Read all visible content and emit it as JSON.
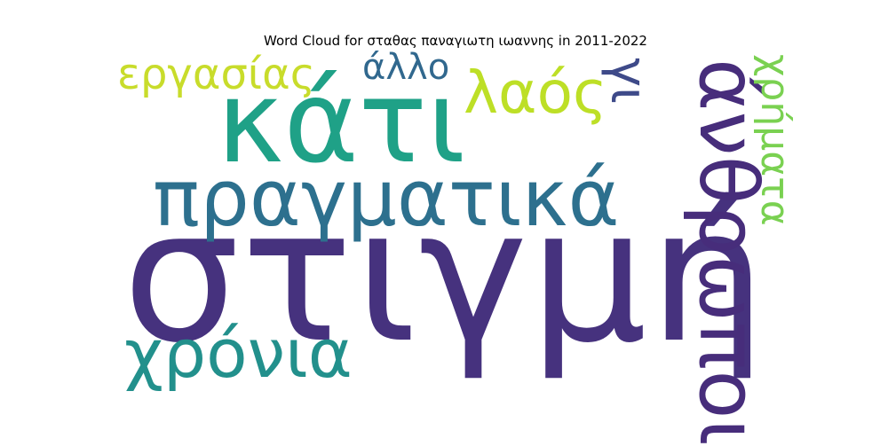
{
  "title": "Word Cloud for σταθας παναγιωτη ιωαννης in 2011-2022",
  "words": [
    {
      "text": "στιγμή",
      "color": "#46327e"
    },
    {
      "text": "κάτι",
      "color": "#1fa187"
    },
    {
      "text": "πραγματικά",
      "color": "#2d708e"
    },
    {
      "text": "χρόνια",
      "color": "#22908c"
    },
    {
      "text": "εργασίας",
      "color": "#c8dc2b"
    },
    {
      "text": "άλλο",
      "color": "#31688e"
    },
    {
      "text": "λαός",
      "color": "#bddf26"
    },
    {
      "text": "γι",
      "color": "#3e4a89"
    },
    {
      "text": "άνθρωποι",
      "color": "#472d7b"
    },
    {
      "text": "χρήματα",
      "color": "#7ad151"
    }
  ]
}
